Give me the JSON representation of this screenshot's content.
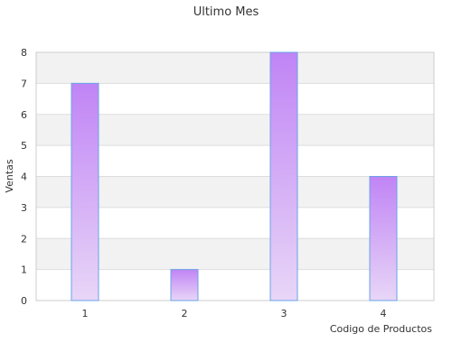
{
  "chart_data": {
    "type": "bar",
    "title": "Ultimo Mes",
    "xlabel": "Codigo de Productos",
    "ylabel": "Ventas",
    "categories": [
      "1",
      "2",
      "3",
      "4"
    ],
    "values": [
      7,
      1,
      8,
      4
    ],
    "ylim": [
      0,
      8
    ],
    "yticks": [
      0,
      1,
      2,
      3,
      4,
      5,
      6,
      7,
      8
    ],
    "grid": true,
    "colors": {
      "bar_top": "#c084f5",
      "bar_bottom": "#e8d6f7",
      "bar_border": "#6aa3e8",
      "band": "#f2f2f2",
      "grid": "#dddddd",
      "axis": "#cccccc"
    }
  }
}
